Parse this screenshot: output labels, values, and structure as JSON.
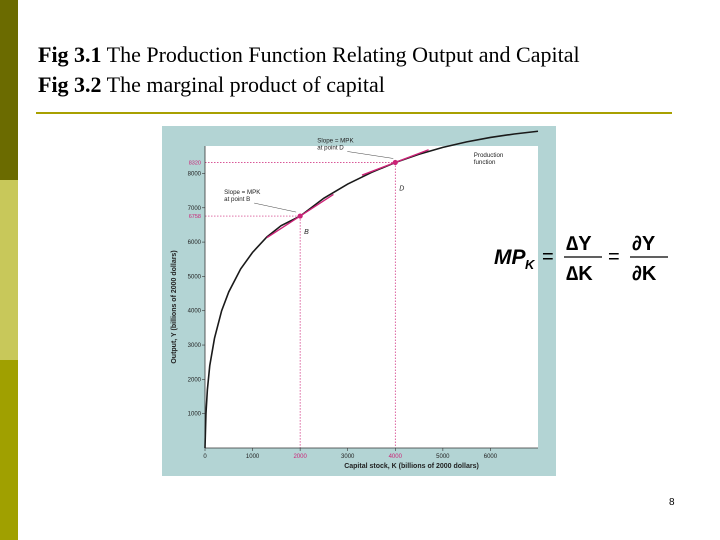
{
  "slide": {
    "title_line1_bold": "Fig 3.1",
    "title_line1_text": " The Production Function  Relating Output and Capital",
    "title_line2_bold": "Fig 3.2",
    "title_line2_text": "  The marginal product of capital",
    "page_number": "8"
  },
  "colors": {
    "sidebar_dark": "#6b6b00",
    "sidebar_light": "#c8c85a",
    "sidebar_mid": "#a0a000",
    "rule": "#a8a000",
    "chart_background": "#b3d4d4",
    "plot_background": "#ffffff",
    "curve": "#1a1a1a",
    "highlight": "#cc2277"
  },
  "formula": {
    "lhs": "MP",
    "lhs_sub": "K",
    "eq1": "=",
    "num1": "∆Y",
    "den1": "∆K",
    "eq2": "=",
    "num2": "∂Y",
    "den2": "∂K"
  },
  "chart_data": {
    "type": "line",
    "xlabel": "Capital stock, K (billions of 2000 dollars)",
    "ylabel": "Output, Y (billions of 2000 dollars)",
    "xlim": [
      0,
      7000
    ],
    "ylim": [
      0,
      8800
    ],
    "x_ticks": [
      0,
      1000,
      2000,
      3000,
      4000,
      5000,
      6000
    ],
    "x_tick_labels": [
      "0",
      "1000",
      "2000",
      "3000",
      "4000",
      "5000",
      "6000"
    ],
    "x_highlight_ticks": [
      2000,
      4000
    ],
    "y_ticks": [
      1000,
      2000,
      3000,
      4000,
      5000,
      6000,
      7000,
      8000
    ],
    "y_tick_labels": [
      "1000",
      "2000",
      "3000",
      "4000",
      "5000",
      "6000",
      "7000",
      "8000"
    ],
    "y_highlight_ticks": [
      6758,
      8320
    ],
    "y_highlight_labels": [
      "6758",
      "8320"
    ],
    "series": [
      {
        "name": "Production function",
        "x": [
          0,
          20,
          50,
          100,
          200,
          350,
          500,
          750,
          1000,
          1300,
          1600,
          2000,
          2500,
          3000,
          3500,
          4000,
          4500,
          5000,
          5500,
          6000,
          6500,
          7000
        ],
        "y": [
          0,
          1000,
          1700,
          2400,
          3200,
          4000,
          4550,
          5220,
          5700,
          6150,
          6480,
          6758,
          7280,
          7690,
          8030,
          8320,
          8560,
          8760,
          8920,
          9050,
          9150,
          9230
        ]
      }
    ],
    "points": [
      {
        "label": "B",
        "x": 2000,
        "y": 6758
      },
      {
        "label": "D",
        "x": 4000,
        "y": 8320
      }
    ],
    "tangents": [
      {
        "at": "B",
        "slope": 0.9
      },
      {
        "at": "D",
        "slope": 0.53
      }
    ],
    "annotations": [
      {
        "line1": "Slope = MPK",
        "line2": "at point B"
      },
      {
        "line1": "Slope = MPK",
        "line2": "at point D"
      },
      {
        "line1": "Production",
        "line2": "function"
      }
    ]
  }
}
